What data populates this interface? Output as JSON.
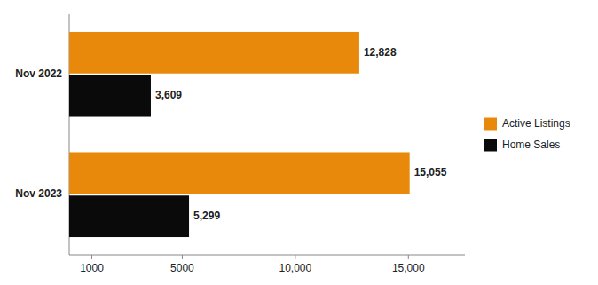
{
  "chart_data": {
    "type": "bar",
    "orientation": "horizontal",
    "categories": [
      "Nov 2022",
      "Nov 2023"
    ],
    "series": [
      {
        "name": "Active Listings",
        "color": "#E8890C",
        "values": [
          12828,
          15055
        ],
        "value_labels": [
          "12,828",
          "15,055"
        ]
      },
      {
        "name": "Home Sales",
        "color": "#0a0a0a",
        "values": [
          3609,
          5299
        ],
        "value_labels": [
          "3,609",
          "5,299"
        ]
      }
    ],
    "xlim": [
      0,
      17500
    ],
    "xticks": [
      1000,
      5000,
      {
        "value": 10000,
        "label": "10,000"
      },
      {
        "value": 15000,
        "label": "15,000"
      }
    ],
    "grid": false,
    "legend": "right",
    "data_labels": true
  }
}
